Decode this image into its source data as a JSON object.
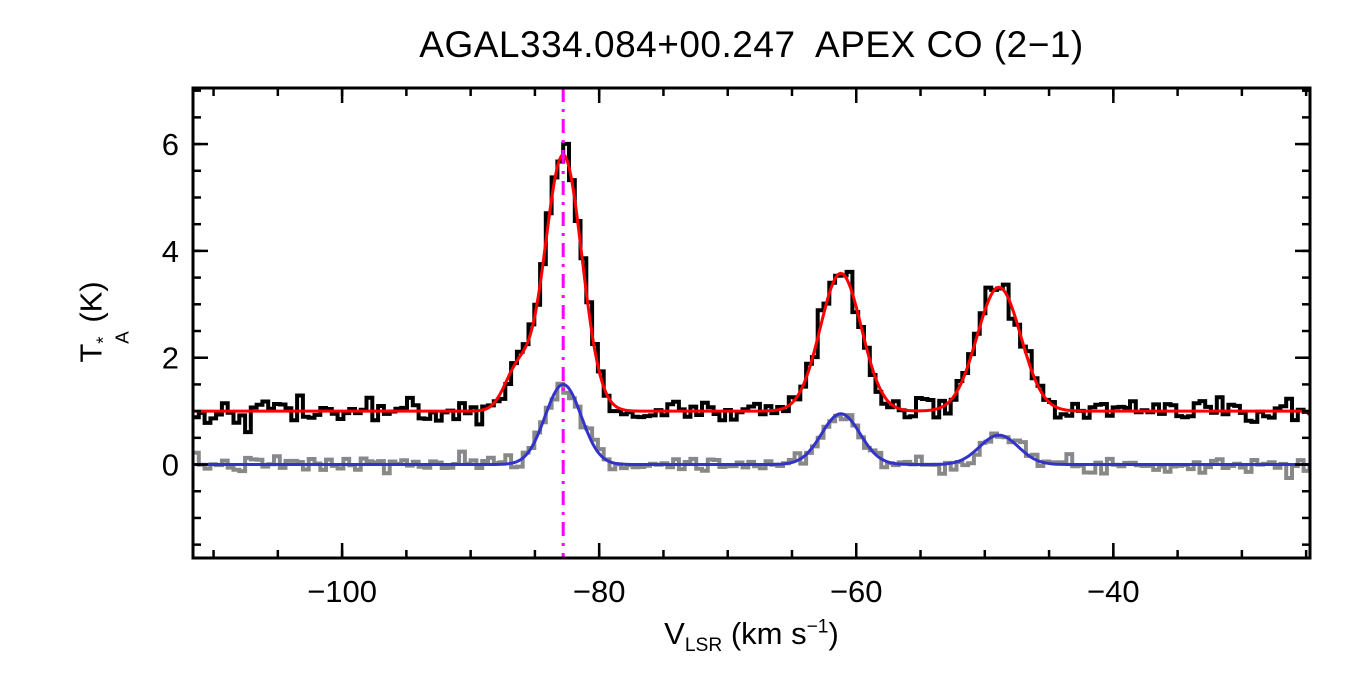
{
  "chart_data": {
    "type": "line",
    "title": "AGAL334.084+00.247  APEX CO (2−1)",
    "xlabel": "VLSR (km s−1)",
    "xlabel_parts": {
      "pre": "V",
      "sub": "LSR",
      "mid": " (km s",
      "sup": "−1",
      "post": ")"
    },
    "ylabel": "TA* (K)",
    "ylabel_parts": {
      "pre": "T",
      "sup": "*",
      "sub": "A",
      "post": " (K)"
    },
    "xlim": [
      -111.6,
      -24.7
    ],
    "ylim": [
      -1.75,
      7.05
    ],
    "grid": false,
    "legend": "none",
    "xticks": {
      "values": [
        -100,
        -80,
        -60,
        -40
      ],
      "labels": [
        "−100",
        "−80",
        "−60",
        "−40"
      ],
      "minor_step": 5
    },
    "yticks": {
      "values": [
        0,
        2,
        4,
        6
      ],
      "labels": [
        "0",
        "2",
        "4",
        "6"
      ],
      "minor_step": 0.5
    },
    "vline": {
      "x": -82.8,
      "color": "#FF00FF",
      "style": "dash-dot"
    },
    "bin_width": 0.45,
    "curve_sample_step": 0.15,
    "series": [
      {
        "name": "observed-spectrum",
        "kind": "histogram",
        "color": "#000000",
        "line_width": 4,
        "baseline": 1.0,
        "noise_sigma": 0.12,
        "seed": 42,
        "gaussians": [
          {
            "center": -86.4,
            "amplitude": 0.72,
            "sigma": 1.0
          },
          {
            "center": -82.8,
            "amplitude": 4.85,
            "sigma": 1.45
          },
          {
            "center": -61.2,
            "amplitude": 2.6,
            "sigma": 1.6
          },
          {
            "center": -48.9,
            "amplitude": 2.35,
            "sigma": 1.7
          }
        ]
      },
      {
        "name": "smoothed-spectrum",
        "kind": "histogram",
        "color": "#888888",
        "line_width": 4,
        "baseline": 0.0,
        "noise_sigma": 0.08,
        "seed": 7,
        "gaussians": [
          {
            "center": -82.8,
            "amplitude": 1.5,
            "sigma": 1.4
          },
          {
            "center": -61.2,
            "amplitude": 0.95,
            "sigma": 1.5
          },
          {
            "center": -48.9,
            "amplitude": 0.55,
            "sigma": 1.5
          }
        ]
      },
      {
        "name": "gaussian-fit-secondary",
        "kind": "model",
        "color": "#3333CC",
        "line_width": 3,
        "baseline": 0.0,
        "gaussians": [
          {
            "center": -82.8,
            "amplitude": 1.5,
            "sigma": 1.4
          },
          {
            "center": -61.2,
            "amplitude": 0.95,
            "sigma": 1.5
          },
          {
            "center": -48.9,
            "amplitude": 0.55,
            "sigma": 1.5
          }
        ]
      },
      {
        "name": "gaussian-fit-main",
        "kind": "model",
        "color": "#FF0000",
        "line_width": 3,
        "baseline": 1.0,
        "gaussians": [
          {
            "center": -86.4,
            "amplitude": 0.72,
            "sigma": 1.0
          },
          {
            "center": -82.8,
            "amplitude": 4.8,
            "sigma": 1.45
          },
          {
            "center": -61.2,
            "amplitude": 2.58,
            "sigma": 1.6
          },
          {
            "center": -48.9,
            "amplitude": 2.32,
            "sigma": 1.7
          }
        ]
      }
    ]
  }
}
